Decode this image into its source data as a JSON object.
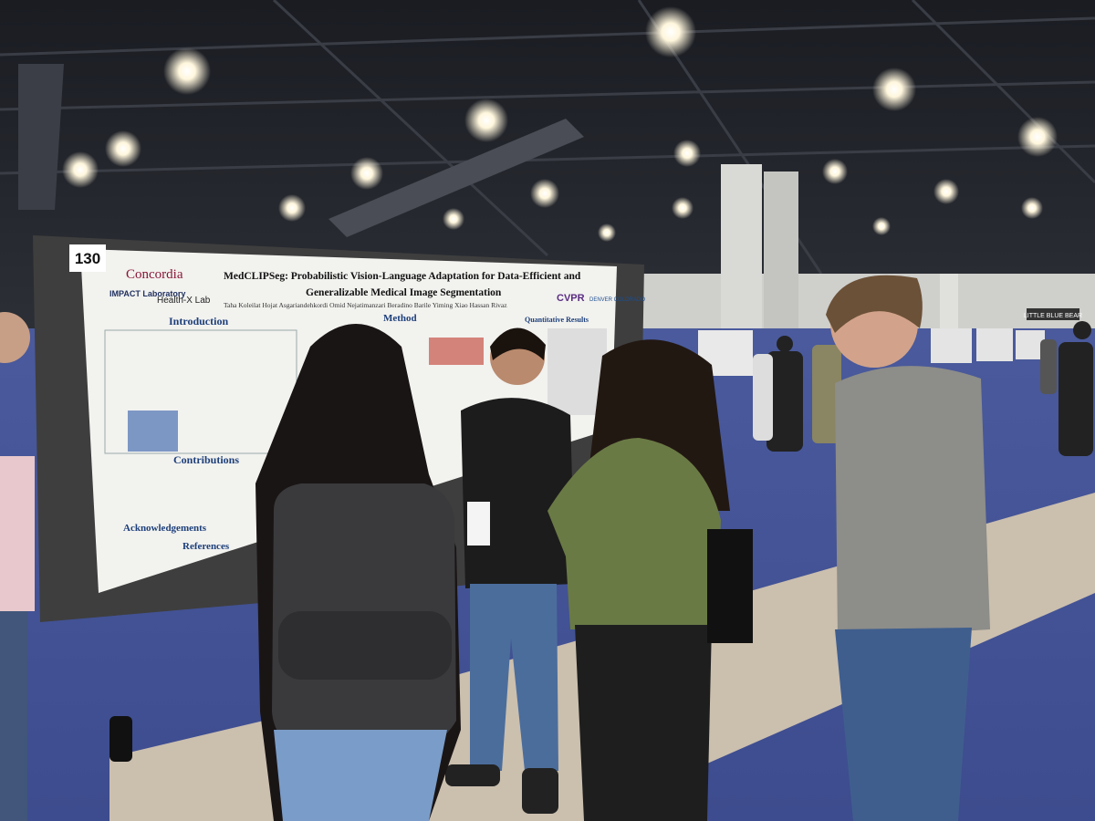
{
  "booth_number": "130",
  "poster": {
    "university": "Concordia",
    "labs": [
      "IMPACT Laboratory",
      "Health-X Lab"
    ],
    "title_line1": "MedCLIPSeg: Probabilistic Vision-Language Adaptation for Data-Efficient and",
    "title_line2": "Generalizable Medical Image Segmentation",
    "authors": "Taha Koleilat   Hojat Asgariandehkordi   Omid Nejatimanzari   Beradino Barile   Yiming Xiao   Hassan Rivaz",
    "conference": "CVPR",
    "location": "DENVER COLORADO",
    "sections": [
      "Introduction",
      "Method",
      "Quantitative Results",
      "Contributions",
      "Acknowledgements",
      "References"
    ]
  },
  "venue_sign": "LITTLE BLUE BEAR"
}
